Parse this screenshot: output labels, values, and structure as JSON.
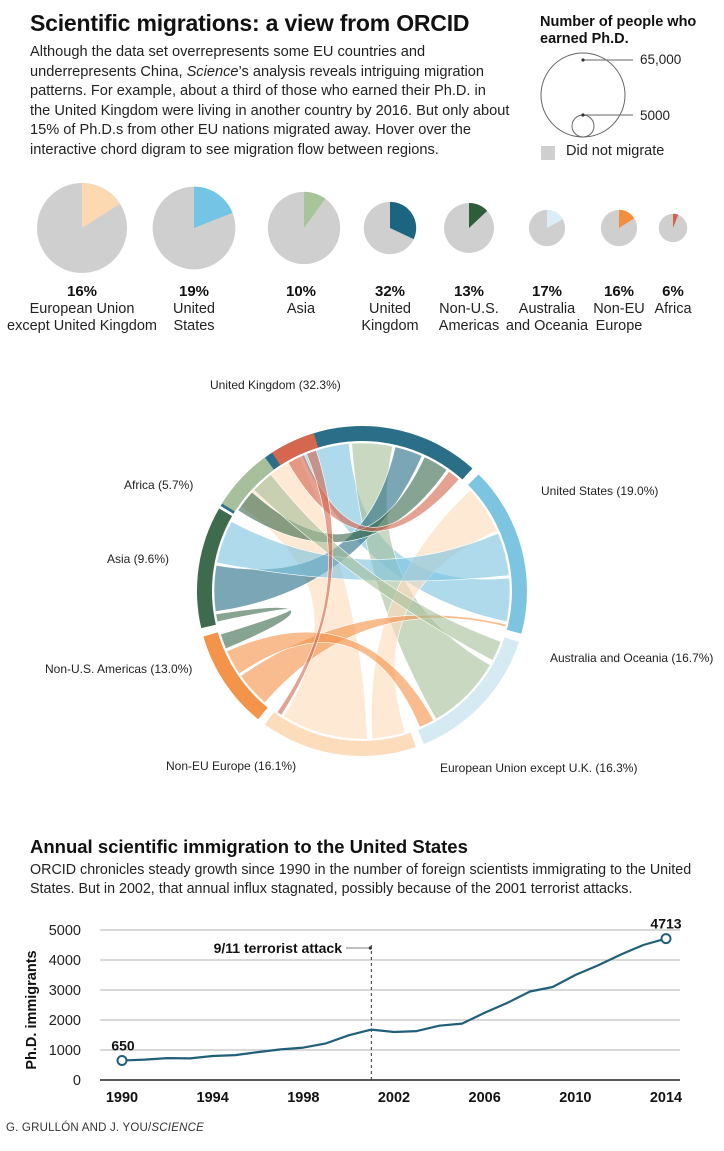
{
  "header": {
    "title": "Scientific migrations: a view from ORCID",
    "intro_part1": "Although the data set overrepresents some EU countries and underrepresents China, ",
    "intro_italic": "Science",
    "intro_part2": "’s analysis reveals intriguing migration patterns. For example, about a third of those who earned their Ph.D. in the United Kingdom were living in another country by 2016. But only about 15% of Ph.D.s from other EU nations migrated away. Hover over the interactive chord digram to see migration flow between regions."
  },
  "legend": {
    "title": "Number of people who earned Ph.D.",
    "large_label": "65,000",
    "small_label": "5000",
    "no_migrate_label": "Did not migrate"
  },
  "colors": {
    "no_migrate": "#cfcfcf",
    "line": "#1f5f7a"
  },
  "pies": [
    {
      "pct": "16%",
      "label1": "European Union",
      "label2": "except United Kingdom",
      "fraction": 0.16,
      "phds": 65000,
      "color": "#fcd9b0"
    },
    {
      "pct": "19%",
      "label1": "United",
      "label2": "States",
      "fraction": 0.19,
      "phds": 55000,
      "color": "#74c4e6"
    },
    {
      "pct": "10%",
      "label1": "Asia",
      "label2": "",
      "fraction": 0.1,
      "phds": 42000,
      "color": "#a8c49a"
    },
    {
      "pct": "32%",
      "label1": "United",
      "label2": "Kingdom",
      "fraction": 0.32,
      "phds": 22000,
      "color": "#1c6580"
    },
    {
      "pct": "13%",
      "label1": "Non-U.S.",
      "label2": "Americas",
      "fraction": 0.13,
      "phds": 20000,
      "color": "#2e5d3a"
    },
    {
      "pct": "17%",
      "label1": "Australia",
      "label2": "and Oceania",
      "fraction": 0.17,
      "phds": 10500,
      "color": "#dbeef7"
    },
    {
      "pct": "16%",
      "label1": "Non-EU",
      "label2": "Europe",
      "fraction": 0.16,
      "phds": 10500,
      "color": "#f28e3c"
    },
    {
      "pct": "6%",
      "label1": "Africa",
      "label2": "",
      "fraction": 0.06,
      "phds": 6500,
      "color": "#d4604a"
    }
  ],
  "chord": {
    "regions": [
      {
        "name": "United Kingdom (32.3%)",
        "color": "#2a6f87"
      },
      {
        "name": "United States (19.0%)",
        "color": "#7cc4e0"
      },
      {
        "name": "Australia and Oceania (16.7%)",
        "color": "#d6eaf3"
      },
      {
        "name": "European Union except U.K. (16.3%)",
        "color": "#fddcbc"
      },
      {
        "name": "Non-EU Europe (16.1%)",
        "color": "#f4934a"
      },
      {
        "name": "Non-U.S. Americas (13.0%)",
        "color": "#3e6a4e"
      },
      {
        "name": "Asia (9.6%)",
        "color": "#a7c09b"
      },
      {
        "name": "Africa (5.7%)",
        "color": "#d5674f"
      }
    ]
  },
  "section2": {
    "title": "Annual scientific immigration to the United States",
    "description": "ORCID chronicles steady growth since 1990 in the number of foreign scientists immigrating to the United States. But in 2002, that annual influx stagnated, possibly because of the 2001 terrorist attacks."
  },
  "chart_data": {
    "type": "line",
    "title": "Annual scientific immigration to the United States",
    "xlabel": "",
    "ylabel": "Ph.D. immigrants",
    "x": [
      1990,
      1991,
      1992,
      1993,
      1994,
      1995,
      1996,
      1997,
      1998,
      1999,
      2000,
      2001,
      2002,
      2003,
      2004,
      2005,
      2006,
      2007,
      2008,
      2009,
      2010,
      2011,
      2012,
      2013,
      2014
    ],
    "series": [
      {
        "name": "Ph.D. immigrants",
        "values": [
          650,
          680,
          730,
          720,
          800,
          830,
          930,
          1020,
          1080,
          1220,
          1490,
          1680,
          1600,
          1630,
          1810,
          1880,
          2240,
          2570,
          2950,
          3100,
          3500,
          3820,
          4180,
          4500,
          4713
        ]
      }
    ],
    "xlim": [
      1990,
      2014
    ],
    "ylim": [
      0,
      5000
    ],
    "xticks": [
      "1990",
      "1994",
      "1998",
      "2002",
      "2006",
      "2010",
      "2014"
    ],
    "yticks": [
      "0",
      "1000",
      "2000",
      "3000",
      "4000",
      "5000"
    ],
    "grid": true,
    "annotations": [
      {
        "label": "650",
        "x": 1990,
        "y": 650
      },
      {
        "label": "4713",
        "x": 2014,
        "y": 4713
      },
      {
        "label": "9/11 terrorist attack",
        "x": 2001
      }
    ]
  },
  "credit": {
    "authors": "G. GRULLÓN AND J. YOU/",
    "publication": "SCIENCE"
  }
}
